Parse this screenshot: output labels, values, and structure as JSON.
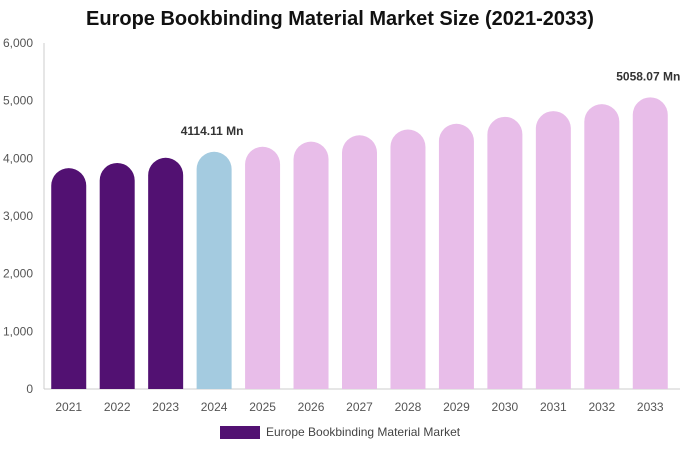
{
  "chart_data": {
    "type": "bar",
    "title": "Europe Bookbinding Material Market Size (2021-2033)",
    "categories": [
      "2021",
      "2022",
      "2023",
      "2024",
      "2025",
      "2026",
      "2027",
      "2028",
      "2029",
      "2030",
      "2031",
      "2032",
      "2033"
    ],
    "series": [
      {
        "name": "Europe Bookbinding Material Market",
        "values": [
          3830,
          3920,
          4010,
          4114.11,
          4200,
          4290,
          4400,
          4500,
          4600,
          4720,
          4820,
          4940,
          5058.07
        ]
      }
    ],
    "bar_colors": [
      "#521172",
      "#521172",
      "#521172",
      "#a4cbe0",
      "#e8bde9",
      "#e8bde9",
      "#e8bde9",
      "#e8bde9",
      "#e8bde9",
      "#e8bde9",
      "#e8bde9",
      "#e8bde9",
      "#e8bde9"
    ],
    "ylim": [
      0,
      6000
    ],
    "yticks": [
      0,
      1000,
      2000,
      3000,
      4000,
      5000,
      6000
    ],
    "ytick_labels": [
      "0",
      "1,000",
      "2,000",
      "3,000",
      "4,000",
      "5,000",
      "6,000"
    ],
    "annotations": [
      {
        "index": 3,
        "text": "4114.11 Mn"
      },
      {
        "index": 12,
        "text": "5058.07 Mn"
      }
    ],
    "legend_color": "#521172",
    "legend_position": "bottom-center",
    "grid": false
  }
}
